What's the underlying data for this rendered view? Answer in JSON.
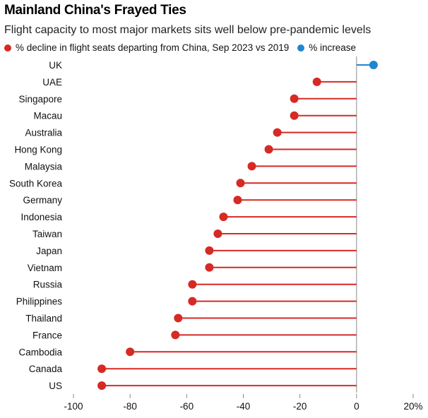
{
  "title": "Mainland China's Frayed Ties",
  "subtitle": "Flight capacity to most major markets sits well below pre-pandemic levels",
  "legend": [
    {
      "label": "% decline in flight seats departing from China, Sep 2023 vs 2019",
      "color": "#d62a24"
    },
    {
      "label": "% increase",
      "color": "#1f86d0"
    }
  ],
  "colors": {
    "decline": "#d62a24",
    "increase": "#1f86d0",
    "axis": "#8a8a8a"
  },
  "chart_data": {
    "type": "lollipop",
    "categories": [
      "UK",
      "UAE",
      "Singapore",
      "Macau",
      "Australia",
      "Hong Kong",
      "Malaysia",
      "South Korea",
      "Germany",
      "Indonesia",
      "Taiwan",
      "Japan",
      "Vietnam",
      "Russia",
      "Philippines",
      "Thailand",
      "France",
      "Cambodia",
      "Canada",
      "US"
    ],
    "values": [
      6,
      -14,
      -22,
      -22,
      -28,
      -31,
      -37,
      -41,
      -42,
      -47,
      -49,
      -52,
      -52,
      -58,
      -58,
      -63,
      -64,
      -80,
      -90,
      -90
    ],
    "xlim": [
      -100,
      20
    ],
    "xticks": [
      {
        "value": -100,
        "label": "-100"
      },
      {
        "value": -80,
        "label": "-80"
      },
      {
        "value": -60,
        "label": "-60"
      },
      {
        "value": -40,
        "label": "-40"
      },
      {
        "value": -20,
        "label": "-20"
      },
      {
        "value": 0,
        "label": "0"
      },
      {
        "value": 20,
        "label": "20%"
      }
    ],
    "grid": false,
    "legend_position": "top-left"
  }
}
